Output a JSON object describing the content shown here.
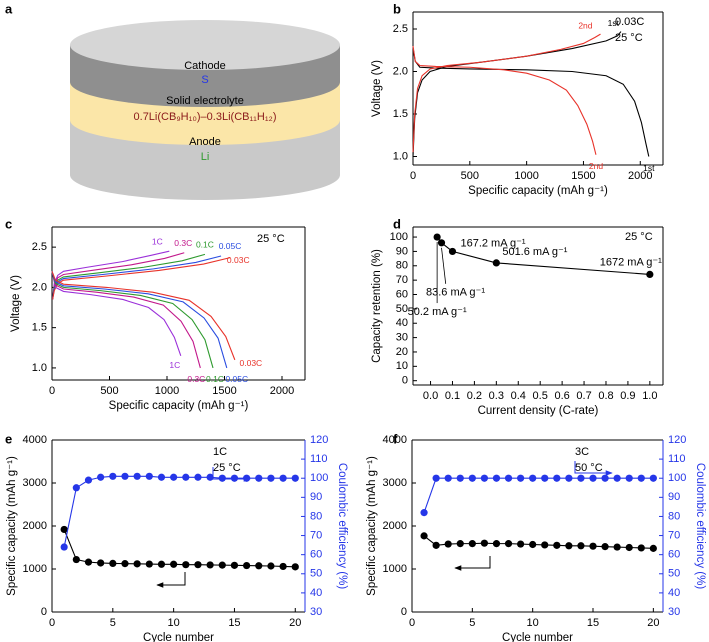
{
  "diagram": {
    "label": "a",
    "cathode": "Cathode",
    "cathode_material": "S",
    "electrolyte": "Solid electrolyte",
    "electrolyte_formula": "0.7Li(CB₉H₁₀)–0.3Li(CB₁₁H₁₂)",
    "anode": "Anode",
    "anode_material": "Li"
  },
  "chart_data": [
    {
      "label": "b",
      "type": "line",
      "xlabel": "Specific capacity (mAh g⁻¹)",
      "ylabel": "Voltage (V)",
      "xlim": [
        0,
        2200
      ],
      "ylim": [
        0.9,
        2.7
      ],
      "xticks": [
        0,
        500,
        1000,
        1500,
        2000
      ],
      "yticks": [
        {
          "value": 1,
          "label": "1.0"
        },
        1.5,
        {
          "value": 2,
          "label": "2.0"
        },
        2.5
      ],
      "annotations": [
        "0.03C",
        "25 °C"
      ],
      "series": [
        {
          "label": "1st",
          "color": "#000000",
          "x": [
            0,
            20,
            60,
            200,
            500,
            1000,
            1400,
            1700,
            1850,
            1950,
            2010,
            2050,
            2075
          ],
          "values": [
            2.28,
            2.12,
            2.05,
            2.04,
            2.03,
            2.02,
            2.0,
            1.95,
            1.85,
            1.65,
            1.4,
            1.15,
            1.0
          ]
        },
        {
          "label": "1st",
          "color": "#000000",
          "x": [
            0,
            15,
            40,
            80,
            150,
            300,
            600,
            1000,
            1400,
            1700,
            1800,
            1830
          ],
          "values": [
            1.0,
            1.45,
            1.75,
            1.9,
            2.0,
            2.06,
            2.11,
            2.18,
            2.27,
            2.36,
            2.42,
            2.47
          ]
        },
        {
          "label": "2nd",
          "color": "#e8332a",
          "x": [
            0,
            20,
            60,
            200,
            500,
            800,
            1000,
            1200,
            1350,
            1450,
            1530,
            1580,
            1610
          ],
          "values": [
            2.3,
            2.12,
            2.07,
            2.06,
            2.05,
            2.02,
            1.98,
            1.9,
            1.78,
            1.6,
            1.38,
            1.18,
            1.02
          ]
        },
        {
          "label": "2nd",
          "color": "#e8332a",
          "x": [
            0,
            15,
            40,
            80,
            150,
            300,
            600,
            1000,
            1300,
            1500,
            1600,
            1650
          ],
          "values": [
            1.05,
            1.5,
            1.8,
            1.95,
            2.03,
            2.07,
            2.11,
            2.18,
            2.26,
            2.33,
            2.4,
            2.44
          ]
        }
      ]
    },
    {
      "label": "c",
      "type": "line",
      "xlabel": "Specific capacity (mAh g⁻¹)",
      "ylabel": "Voltage (V)",
      "xlim": [
        0,
        2200
      ],
      "ylim": [
        0.85,
        2.75
      ],
      "xticks": [
        0,
        500,
        1000,
        1500,
        2000
      ],
      "yticks": [
        {
          "value": 1,
          "label": "1.0"
        },
        1.5,
        {
          "value": 2,
          "label": "2.0"
        },
        2.5
      ],
      "annotations": [
        "25 °C"
      ],
      "series": [
        {
          "label": "1C",
          "color": "#9b30d9",
          "x": [
            5,
            20,
            50,
            100,
            306,
            612,
            867,
            1020
          ],
          "values": [
            1.85,
            2.05,
            2.15,
            2.2,
            2.25,
            2.32,
            2.4,
            2.45
          ]
        },
        {
          "label": "0.3C",
          "color": "#c2188b",
          "x": [
            5,
            20,
            50,
            100,
            345,
            690,
            978,
            1150
          ],
          "values": [
            1.85,
            2.02,
            2.12,
            2.16,
            2.21,
            2.28,
            2.36,
            2.43
          ]
        },
        {
          "label": "0.1C",
          "color": "#2e9a2e",
          "x": [
            5,
            20,
            50,
            100,
            399,
            798,
            1131,
            1330
          ],
          "values": [
            1.85,
            2.0,
            2.09,
            2.13,
            2.18,
            2.25,
            2.33,
            2.41
          ]
        },
        {
          "label": "0.05C",
          "color": "#2a4de0",
          "x": [
            5,
            20,
            50,
            100,
            441,
            882,
            1250,
            1470
          ],
          "values": [
            1.85,
            1.98,
            2.07,
            2.11,
            2.16,
            2.23,
            2.31,
            2.39
          ]
        },
        {
          "label": "0.03C",
          "color": "#e8332a",
          "x": [
            5,
            20,
            50,
            100,
            465,
            930,
            1318,
            1550
          ],
          "values": [
            1.85,
            1.96,
            2.05,
            2.09,
            2.14,
            2.21,
            2.29,
            2.37
          ]
        },
        {
          "label": "1C",
          "color": "#9b30d9",
          "x": [
            0,
            30,
            100,
            336,
            616,
            840,
            974,
            1064,
            1120
          ],
          "values": [
            2.2,
            2.0,
            1.95,
            1.91,
            1.85,
            1.75,
            1.6,
            1.38,
            1.15
          ]
        },
        {
          "label": "0.3C",
          "color": "#c2188b",
          "x": [
            0,
            30,
            100,
            387,
            710,
            968,
            1122,
            1226,
            1290
          ],
          "values": [
            2.2,
            2.03,
            1.98,
            1.94,
            1.88,
            1.78,
            1.58,
            1.33,
            1.0
          ]
        },
        {
          "label": "0.1C",
          "color": "#2e9a2e",
          "x": [
            0,
            30,
            100,
            420,
            770,
            1050,
            1218,
            1330,
            1400
          ],
          "values": [
            2.2,
            2.05,
            2.0,
            1.96,
            1.9,
            1.8,
            1.6,
            1.35,
            1.0
          ]
        },
        {
          "label": "0.05C",
          "color": "#2a4de0",
          "x": [
            0,
            30,
            100,
            456,
            836,
            1140,
            1322,
            1444,
            1520
          ],
          "values": [
            2.2,
            2.07,
            2.02,
            1.98,
            1.92,
            1.82,
            1.62,
            1.37,
            1.0
          ]
        },
        {
          "label": "0.03C",
          "color": "#e8332a",
          "x": [
            0,
            30,
            100,
            477,
            875,
            1193,
            1383,
            1511,
            1590
          ],
          "values": [
            2.2,
            2.09,
            2.04,
            2.0,
            1.94,
            1.84,
            1.64,
            1.39,
            1.1
          ]
        }
      ]
    },
    {
      "label": "d",
      "type": "line",
      "xlabel": "Current density (C-rate)",
      "ylabel": "Capacity retention (%)",
      "xlim": [
        -0.08,
        1.06
      ],
      "ylim": [
        -3,
        107
      ],
      "xticks": [
        {
          "value": 0,
          "label": "0.0"
        },
        0.1,
        0.2,
        0.3,
        0.4,
        0.5,
        0.6,
        0.7,
        0.8,
        0.9,
        {
          "value": 1,
          "label": "1.0"
        }
      ],
      "yticks": [
        0,
        10,
        20,
        30,
        40,
        50,
        60,
        70,
        80,
        90,
        100
      ],
      "annotations": [
        "25 °C"
      ],
      "series": [
        {
          "color": "#000000",
          "markers": true,
          "x": [
            0.03,
            0.05,
            0.1,
            0.3,
            1.0
          ],
          "values": [
            100,
            96,
            90,
            82,
            74
          ],
          "point_labels": [
            "50.2 mA g⁻¹",
            "83.6 mA g⁻¹",
            "167.2 mA g⁻¹",
            "501.6 mA g⁻¹",
            "1672 mA g⁻¹"
          ]
        }
      ]
    },
    {
      "label": "e",
      "type": "line",
      "xlabel": "Cycle number",
      "ylabel": "Specific capacity (mAh g⁻¹)",
      "y2label": "Coulombic efficiency (%)",
      "xlim": [
        0,
        20.8
      ],
      "ylim": [
        0,
        4000
      ],
      "y2lim": [
        30,
        120
      ],
      "xticks": [
        0,
        5,
        10,
        15,
        20
      ],
      "yticks": [
        0,
        1000,
        2000,
        3000,
        4000
      ],
      "y2ticks": [
        30,
        40,
        50,
        60,
        70,
        80,
        90,
        100,
        110,
        120
      ],
      "annotations": [
        "1C",
        "25 °C"
      ],
      "series": [
        {
          "color": "#000000",
          "markers": true,
          "x": [
            1,
            2,
            3,
            4,
            5,
            6,
            7,
            8,
            9,
            10,
            11,
            12,
            13,
            14,
            15,
            16,
            17,
            18,
            19,
            20
          ],
          "values": [
            1920,
            1220,
            1160,
            1140,
            1130,
            1125,
            1120,
            1115,
            1110,
            1110,
            1100,
            1100,
            1095,
            1090,
            1085,
            1080,
            1075,
            1070,
            1060,
            1050
          ]
        },
        {
          "color": "#2536e8",
          "markers": true,
          "axis": "y2",
          "x": [
            1,
            2,
            3,
            4,
            5,
            6,
            7,
            8,
            9,
            10,
            11,
            12,
            13,
            14,
            15,
            16,
            17,
            18,
            19,
            20
          ],
          "values": [
            64,
            95,
            99,
            100.5,
            101,
            101,
            101,
            101,
            100.5,
            100.5,
            100.5,
            100.5,
            100.5,
            100,
            100,
            100,
            100,
            100,
            100,
            100
          ]
        }
      ]
    },
    {
      "label": "f",
      "type": "line",
      "xlabel": "Cycle number",
      "ylabel": "Specific capacity (mAh g⁻¹)",
      "y2label": "Coulombic efficiency (%)",
      "xlim": [
        0,
        20.8
      ],
      "ylim": [
        0,
        4000
      ],
      "y2lim": [
        30,
        120
      ],
      "xticks": [
        0,
        5,
        10,
        15,
        20
      ],
      "yticks": [
        0,
        1000,
        2000,
        3000,
        4000
      ],
      "y2ticks": [
        30,
        40,
        50,
        60,
        70,
        80,
        90,
        100,
        110,
        120
      ],
      "annotations": [
        "3C",
        "50 °C"
      ],
      "series": [
        {
          "color": "#000000",
          "markers": true,
          "x": [
            1,
            2,
            3,
            4,
            5,
            6,
            7,
            8,
            9,
            10,
            11,
            12,
            13,
            14,
            15,
            16,
            17,
            18,
            19,
            20
          ],
          "values": [
            1770,
            1550,
            1580,
            1590,
            1590,
            1600,
            1590,
            1590,
            1580,
            1570,
            1560,
            1550,
            1540,
            1540,
            1530,
            1520,
            1510,
            1500,
            1490,
            1480
          ]
        },
        {
          "color": "#2536e8",
          "markers": true,
          "axis": "y2",
          "x": [
            1,
            2,
            3,
            4,
            5,
            6,
            7,
            8,
            9,
            10,
            11,
            12,
            13,
            14,
            15,
            16,
            17,
            18,
            19,
            20
          ],
          "values": [
            82,
            100,
            100,
            100,
            100,
            100,
            100,
            100,
            100,
            100,
            100,
            100,
            100,
            100,
            100,
            100,
            100,
            100,
            100,
            100
          ]
        }
      ]
    }
  ]
}
